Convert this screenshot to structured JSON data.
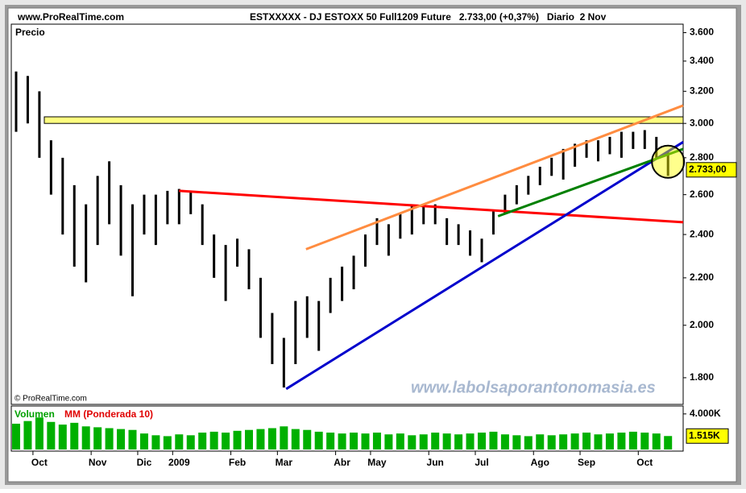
{
  "chart_data": {
    "type": "ohlc",
    "site": "www.ProRealTime.com",
    "title": "ESTXXXXX - DJ ESTOXX 50 Full1209 Future   2.733,00 (+0,37%)   Diario  2 Nov",
    "panel_label": "Precio",
    "copyright": "© ProRealTime.com",
    "watermark": "www.labolsaporantonomasia.es",
    "log_scale": true,
    "categories": [
      null,
      null,
      "Oct",
      null,
      null,
      null,
      null,
      "Nov",
      null,
      null,
      null,
      "Dic",
      null,
      null,
      "2009",
      null,
      null,
      null,
      null,
      "Feb",
      null,
      null,
      null,
      "Mar",
      null,
      null,
      null,
      null,
      "Abr",
      null,
      null,
      "May",
      null,
      null,
      null,
      null,
      "Jun",
      null,
      null,
      null,
      "Jul",
      null,
      null,
      null,
      null,
      "Ago",
      null,
      null,
      null,
      "Sep",
      null,
      null,
      null,
      null,
      "Oct",
      null,
      null
    ],
    "series": [
      {
        "name": "High",
        "color": "#000000",
        "values": [
          3330,
          3300,
          3200,
          2900,
          2800,
          2650,
          2550,
          2700,
          2780,
          2650,
          2550,
          2600,
          2600,
          2620,
          2630,
          2620,
          2550,
          2400,
          2350,
          2380,
          2330,
          2200,
          2050,
          1950,
          2100,
          2120,
          2100,
          2200,
          2250,
          2300,
          2400,
          2480,
          2450,
          2500,
          2550,
          2550,
          2550,
          2480,
          2450,
          2420,
          2380,
          2520,
          2600,
          2650,
          2700,
          2750,
          2800,
          2850,
          2880,
          2900,
          2900,
          2920,
          2950,
          2950,
          2960,
          2920,
          2830
        ]
      },
      {
        "name": "Low",
        "color": "#000000",
        "values": [
          2950,
          3000,
          2800,
          2600,
          2400,
          2250,
          2180,
          2350,
          2450,
          2300,
          2120,
          2400,
          2350,
          2450,
          2450,
          2500,
          2350,
          2200,
          2100,
          2250,
          2150,
          1950,
          1850,
          1765,
          1850,
          1950,
          1900,
          2050,
          2100,
          2150,
          2250,
          2350,
          2300,
          2380,
          2400,
          2450,
          2450,
          2350,
          2350,
          2300,
          2270,
          2400,
          2500,
          2550,
          2600,
          2650,
          2700,
          2680,
          2750,
          2800,
          2780,
          2820,
          2800,
          2850,
          2850,
          2800,
          2700
        ]
      }
    ],
    "last_price": {
      "value": 2733,
      "label": "2.733,00"
    },
    "ylim": [
      1720,
      3650
    ],
    "yticks": [
      {
        "value": 1800,
        "label": "1.800"
      },
      {
        "value": 2000,
        "label": "2.000"
      },
      {
        "value": 2200,
        "label": "2.200"
      },
      {
        "value": 2400,
        "label": "2.400"
      },
      {
        "value": 2600,
        "label": "2.600"
      },
      {
        "value": 2800,
        "label": "2.800"
      },
      {
        "value": 3000,
        "label": "3.000"
      },
      {
        "value": 3200,
        "label": "3.200"
      },
      {
        "value": 3400,
        "label": "3.400"
      },
      {
        "value": 3600,
        "label": "3.600"
      }
    ],
    "band": {
      "color": "#ffff80",
      "values": [
        3000,
        3040
      ]
    },
    "trend_lines": [
      {
        "color": "#ff0000",
        "x": [
          14,
          57.3
        ],
        "values": [
          2620,
          2460
        ]
      },
      {
        "color": "#ff8c40",
        "x": [
          24.9,
          57.3
        ],
        "values": [
          2330,
          3110
        ]
      },
      {
        "color": "#0000cc",
        "x": [
          23.2,
          57.3
        ],
        "values": [
          1760,
          2890
        ]
      },
      {
        "color": "#008000",
        "x": [
          41.4,
          57.3
        ],
        "values": [
          2490,
          2850
        ]
      }
    ],
    "volume": {
      "label": "Volumen",
      "ma_label": "MM (Ponderada 10)",
      "color": "#00b000",
      "ma_color": "#ff0000",
      "values": [
        2900,
        3200,
        3600,
        3100,
        2800,
        3000,
        2600,
        2500,
        2400,
        2300,
        2200,
        1800,
        1600,
        1500,
        1700,
        1600,
        1900,
        2000,
        1900,
        2100,
        2200,
        2300,
        2400,
        2600,
        2300,
        2200,
        2000,
        1900,
        1800,
        1900,
        1800,
        1900,
        1700,
        1800,
        1600,
        1700,
        1900,
        1800,
        1700,
        1800,
        1900,
        2000,
        1700,
        1600,
        1500,
        1700,
        1600,
        1700,
        1800,
        1900,
        1700,
        1800,
        1900,
        2000,
        1900,
        1800,
        1515
      ],
      "last": {
        "value": 1515,
        "label": "1.515K"
      },
      "ylim": [
        0,
        4800
      ],
      "yticks": [
        {
          "value": 4000,
          "label": "4.000K"
        }
      ]
    }
  }
}
